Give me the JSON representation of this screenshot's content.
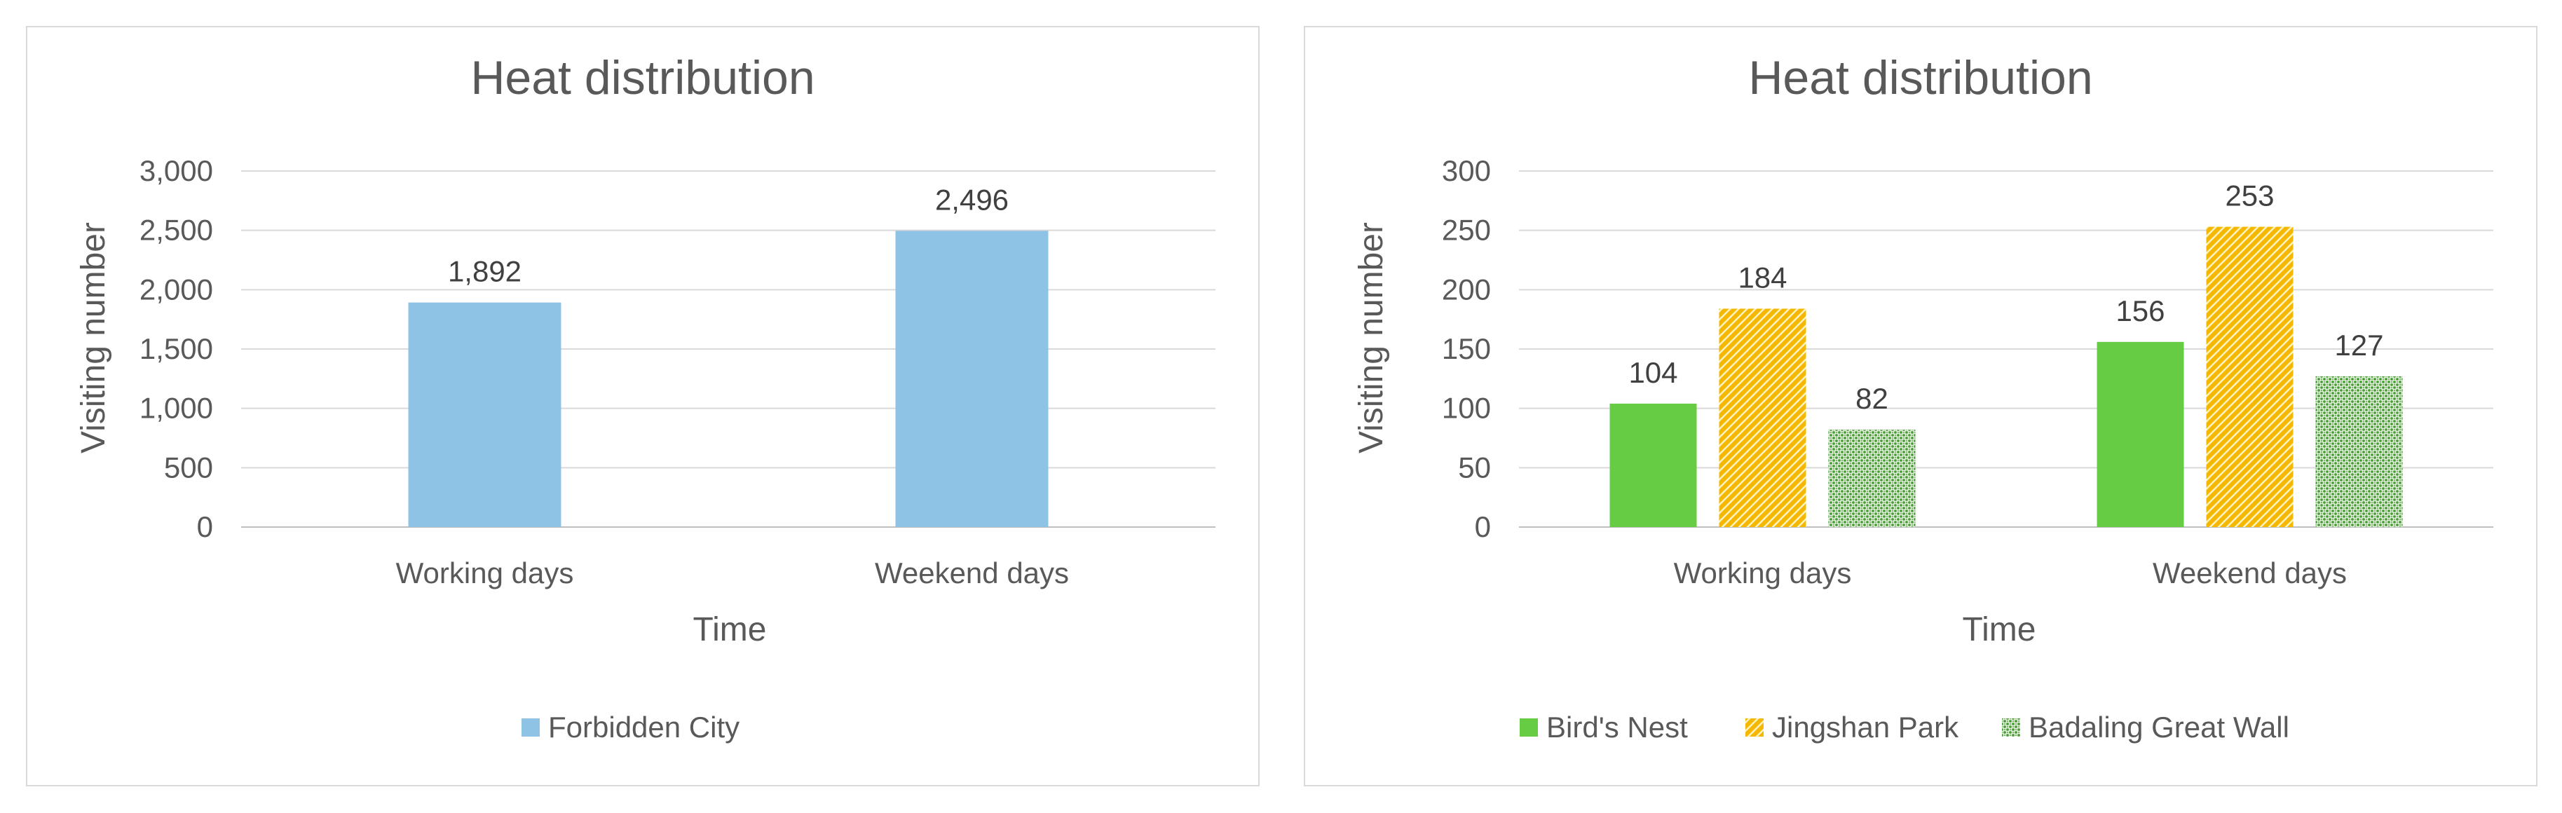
{
  "chart_data": [
    {
      "type": "bar",
      "title": "Heat distribution",
      "xlabel": "Time",
      "ylabel": "Visiting number",
      "categories": [
        "Working days",
        "Weekend days"
      ],
      "yticks": [
        "0",
        "500",
        "1,000",
        "1,500",
        "2,000",
        "2,500",
        "3,000"
      ],
      "ylim": [
        0,
        3000
      ],
      "grid": true,
      "legend_position": "bottom",
      "series": [
        {
          "name": "Forbidden City",
          "values": [
            1892,
            2496
          ],
          "labels": [
            "1,892",
            "2,496"
          ],
          "color": "#8fc3e6",
          "pattern": "solid"
        }
      ]
    },
    {
      "type": "bar",
      "title": "Heat distribution",
      "xlabel": "Time",
      "ylabel": "Visiting number",
      "categories": [
        "Working days",
        "Weekend days"
      ],
      "yticks": [
        "0",
        "50",
        "100",
        "150",
        "200",
        "250",
        "300"
      ],
      "ylim": [
        0,
        300
      ],
      "grid": true,
      "legend_position": "bottom",
      "series": [
        {
          "name": "Bird's Nest",
          "values": [
            104,
            156
          ],
          "labels": [
            "104",
            "156"
          ],
          "color": "#66cc44",
          "pattern": "solid"
        },
        {
          "name": "Jingshan Park",
          "values": [
            184,
            253
          ],
          "labels": [
            "184",
            "253"
          ],
          "color": "#f5b800",
          "pattern": "diagonal"
        },
        {
          "name": "Badaling Great Wall",
          "values": [
            82,
            127
          ],
          "labels": [
            "82",
            "127"
          ],
          "color": "#4a9a3a",
          "pattern": "dots"
        }
      ]
    }
  ]
}
